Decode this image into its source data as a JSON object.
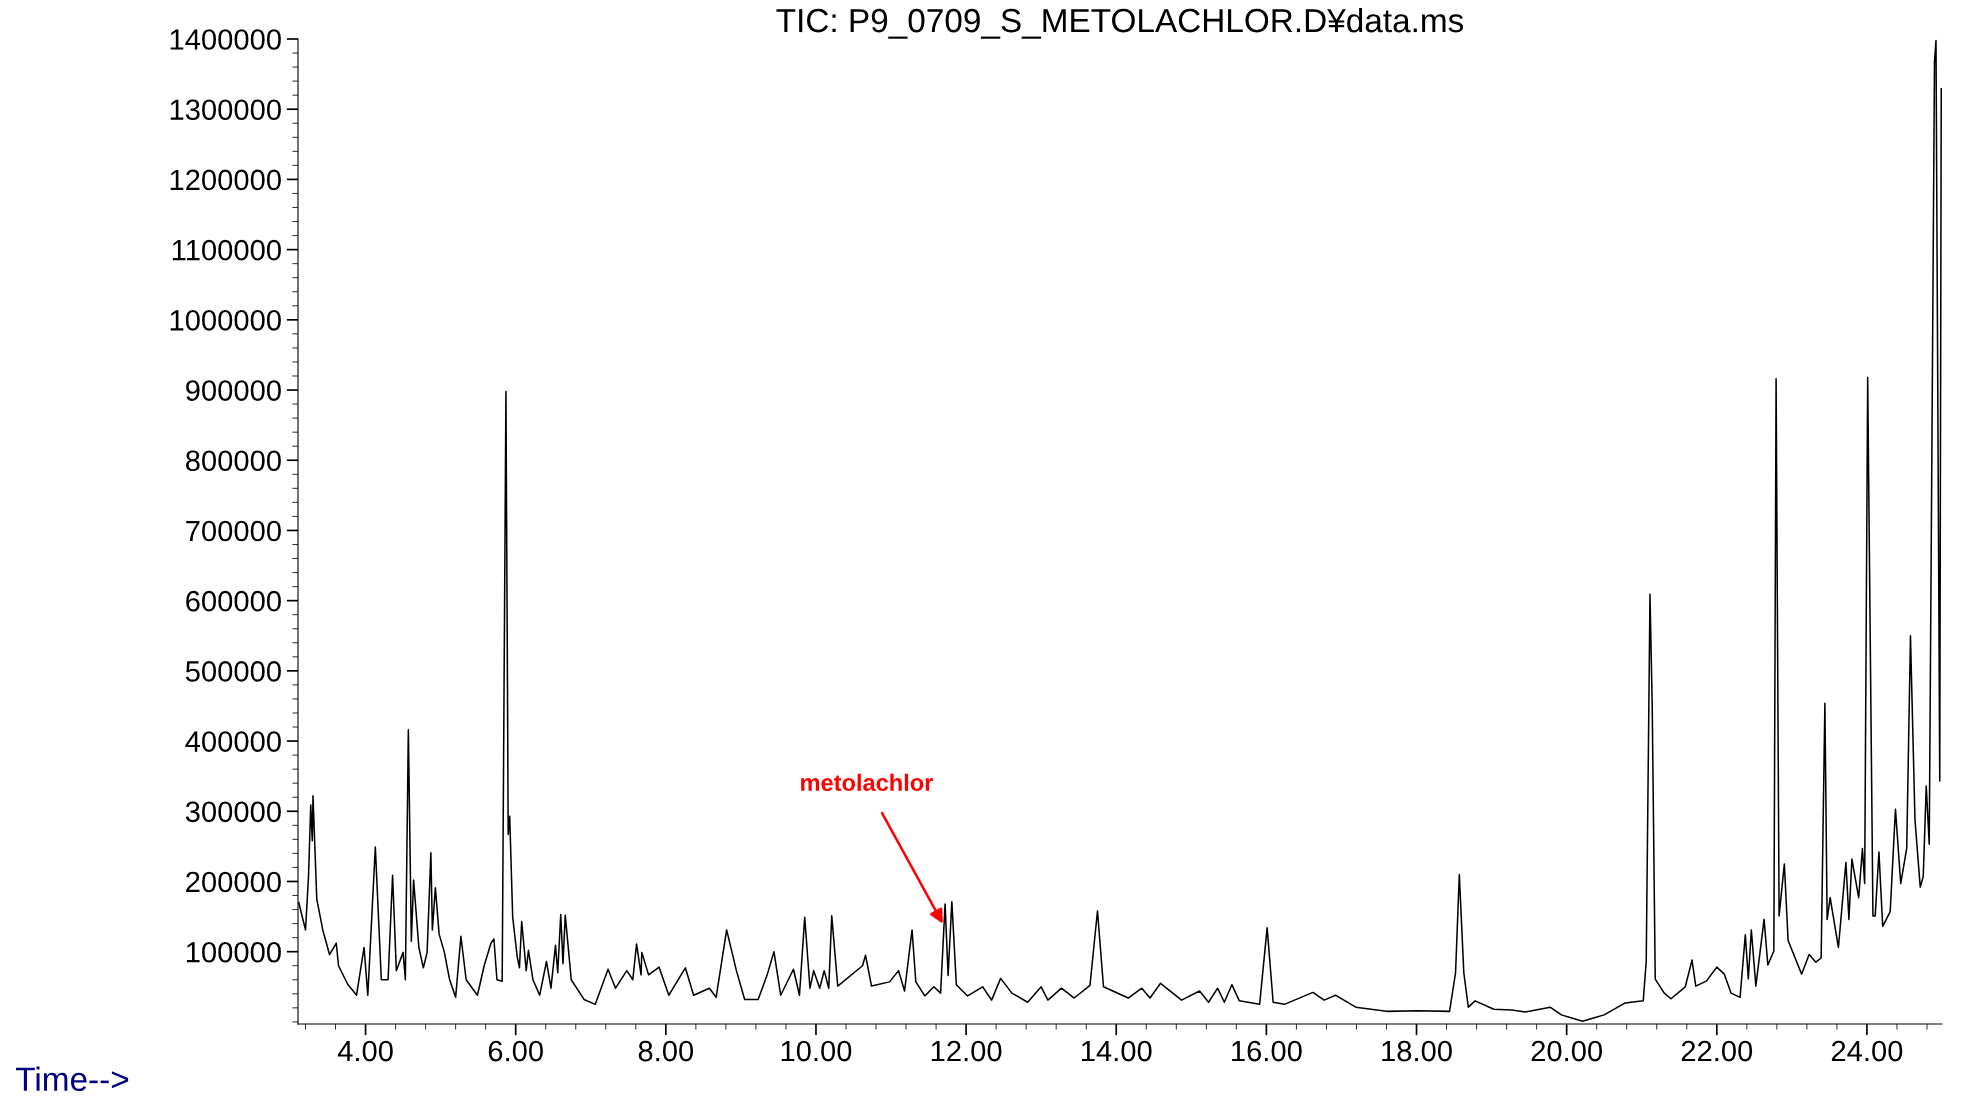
{
  "chart_data": {
    "type": "line",
    "title": "TIC: P9_0709_S_METOLACHLOR.D¥data.ms",
    "xlabel": "Time-->",
    "annotations": [
      {
        "text": "metolachlor",
        "x": 11.69,
        "y": 140000
      }
    ],
    "color": "#000000",
    "x": [
      3.11,
      3.2,
      3.24,
      3.27,
      3.29,
      3.3,
      3.35,
      3.43,
      3.52,
      3.61,
      3.64,
      3.76,
      3.88,
      3.98,
      4.03,
      4.13,
      4.21,
      4.3,
      4.36,
      4.41,
      4.5,
      4.53,
      4.57,
      4.61,
      4.64,
      4.71,
      4.77,
      4.82,
      4.87,
      4.89,
      4.93,
      4.98,
      5.05,
      5.12,
      5.2,
      5.27,
      5.34,
      5.49,
      5.58,
      5.67,
      5.71,
      5.75,
      5.82,
      5.87,
      5.89,
      5.9,
      5.92,
      5.96,
      6.02,
      6.05,
      6.08,
      6.14,
      6.17,
      6.23,
      6.32,
      6.41,
      6.47,
      6.53,
      6.56,
      6.6,
      6.63,
      6.66,
      6.74,
      6.91,
      7.06,
      7.23,
      7.33,
      7.48,
      7.56,
      7.61,
      7.67,
      7.68,
      7.77,
      7.91,
      8.04,
      8.26,
      8.37,
      8.58,
      8.67,
      8.81,
      8.94,
      9.05,
      9.23,
      9.35,
      9.44,
      9.53,
      9.7,
      9.78,
      9.85,
      9.92,
      9.97,
      10.05,
      10.11,
      10.17,
      10.21,
      10.29,
      10.62,
      10.66,
      10.74,
      10.98,
      11.1,
      11.18,
      11.28,
      11.33,
      11.45,
      11.57,
      11.66,
      11.72,
      11.76,
      11.81,
      11.87,
      12.02,
      12.22,
      12.34,
      12.46,
      12.61,
      12.82,
      13.0,
      13.09,
      13.27,
      13.44,
      13.65,
      13.75,
      13.83,
      14.16,
      14.34,
      14.45,
      14.59,
      14.87,
      15.11,
      15.23,
      15.35,
      15.44,
      15.54,
      15.64,
      15.91,
      16.01,
      16.09,
      16.24,
      16.62,
      16.77,
      16.92,
      17.19,
      17.6,
      18.02,
      18.44,
      18.52,
      18.57,
      18.63,
      18.69,
      18.78,
      19.03,
      19.27,
      19.45,
      19.78,
      19.93,
      20.21,
      20.5,
      20.78,
      21.02,
      21.06,
      21.11,
      21.14,
      21.18,
      21.3,
      21.39,
      21.58,
      21.67,
      21.72,
      21.86,
      22.0,
      22.1,
      22.19,
      22.31,
      22.38,
      22.42,
      22.46,
      22.52,
      22.63,
      22.68,
      22.76,
      22.79,
      22.83,
      22.9,
      22.95,
      23.13,
      23.23,
      23.32,
      23.39,
      23.44,
      23.47,
      23.51,
      23.62,
      23.72,
      23.76,
      23.8,
      23.89,
      23.94,
      23.97,
      24.01,
      24.08,
      24.11,
      24.16,
      24.21,
      24.31,
      24.38,
      24.45,
      24.53,
      24.58,
      24.64,
      24.71,
      24.75,
      24.79,
      24.83,
      24.9,
      24.92,
      24.97,
      24.99
    ],
    "values": [
      170000,
      131000,
      207000,
      309000,
      258000,
      322000,
      175000,
      131000,
      96000,
      112000,
      80000,
      54000,
      38000,
      106000,
      38000,
      249000,
      60000,
      60000,
      209000,
      73000,
      99000,
      60000,
      416000,
      115000,
      202000,
      106000,
      77000,
      99000,
      241000,
      131000,
      191000,
      125000,
      99000,
      60000,
      35000,
      122000,
      60000,
      38000,
      80000,
      112000,
      118000,
      60000,
      58000,
      898000,
      488000,
      267000,
      293000,
      149000,
      93000,
      77000,
      143000,
      73000,
      102000,
      60000,
      38000,
      86000,
      48000,
      109000,
      70000,
      153000,
      83000,
      152000,
      60000,
      32000,
      25000,
      75000,
      48000,
      73000,
      60000,
      111000,
      67000,
      99000,
      67000,
      78000,
      38000,
      77000,
      38000,
      48000,
      35000,
      131000,
      73000,
      32000,
      32000,
      67000,
      100000,
      38000,
      75000,
      38000,
      149000,
      48000,
      73000,
      48000,
      73000,
      48000,
      151000,
      51000,
      80000,
      95000,
      51000,
      57000,
      73000,
      44000,
      131000,
      57000,
      37000,
      50000,
      41000,
      168000,
      66000,
      171000,
      53000,
      37000,
      50000,
      31000,
      62000,
      41000,
      28000,
      50000,
      31000,
      48000,
      34000,
      52000,
      158000,
      50000,
      34000,
      48000,
      34000,
      55000,
      31000,
      44000,
      28000,
      48000,
      28000,
      53000,
      30000,
      25000,
      134000,
      28000,
      25000,
      42000,
      31000,
      38000,
      21000,
      15000,
      16000,
      15000,
      70000,
      210000,
      70000,
      21000,
      30000,
      18000,
      17000,
      14000,
      21000,
      10000,
      1000,
      10000,
      27000,
      30000,
      86000,
      609000,
      449000,
      61000,
      41000,
      33000,
      50000,
      88000,
      51000,
      58000,
      78000,
      68000,
      41000,
      35000,
      124000,
      61000,
      131000,
      51000,
      146000,
      81000,
      101000,
      916000,
      151000,
      225000,
      116000,
      68000,
      96000,
      85000,
      91000,
      454000,
      146000,
      177000,
      106000,
      227000,
      146000,
      232000,
      177000,
      247000,
      197000,
      918000,
      151000,
      151000,
      242000,
      136000,
      157000,
      303000,
      197000,
      247000,
      550000,
      288000,
      192000,
      207000,
      336000,
      253000,
      1368000,
      1398000,
      343000,
      1329000
    ],
    "xlim": [
      3.1,
      25.0
    ],
    "ylim": [
      -3000,
      1400000
    ],
    "xticks": [
      {
        "value": 4,
        "label": "4.00"
      },
      {
        "value": 6,
        "label": "6.00"
      },
      {
        "value": 8,
        "label": "8.00"
      },
      {
        "value": 10,
        "label": "10.00"
      },
      {
        "value": 12,
        "label": "12.00"
      },
      {
        "value": 14,
        "label": "14.00"
      },
      {
        "value": 16,
        "label": "16.00"
      },
      {
        "value": 18,
        "label": "18.00"
      },
      {
        "value": 20,
        "label": "20.00"
      },
      {
        "value": 22,
        "label": "22.00"
      },
      {
        "value": 24,
        "label": "24.00"
      }
    ],
    "yticks": [
      100000,
      200000,
      300000,
      400000,
      500000,
      600000,
      700000,
      800000,
      900000,
      1000000,
      1100000,
      1200000,
      1300000,
      1400000
    ]
  }
}
